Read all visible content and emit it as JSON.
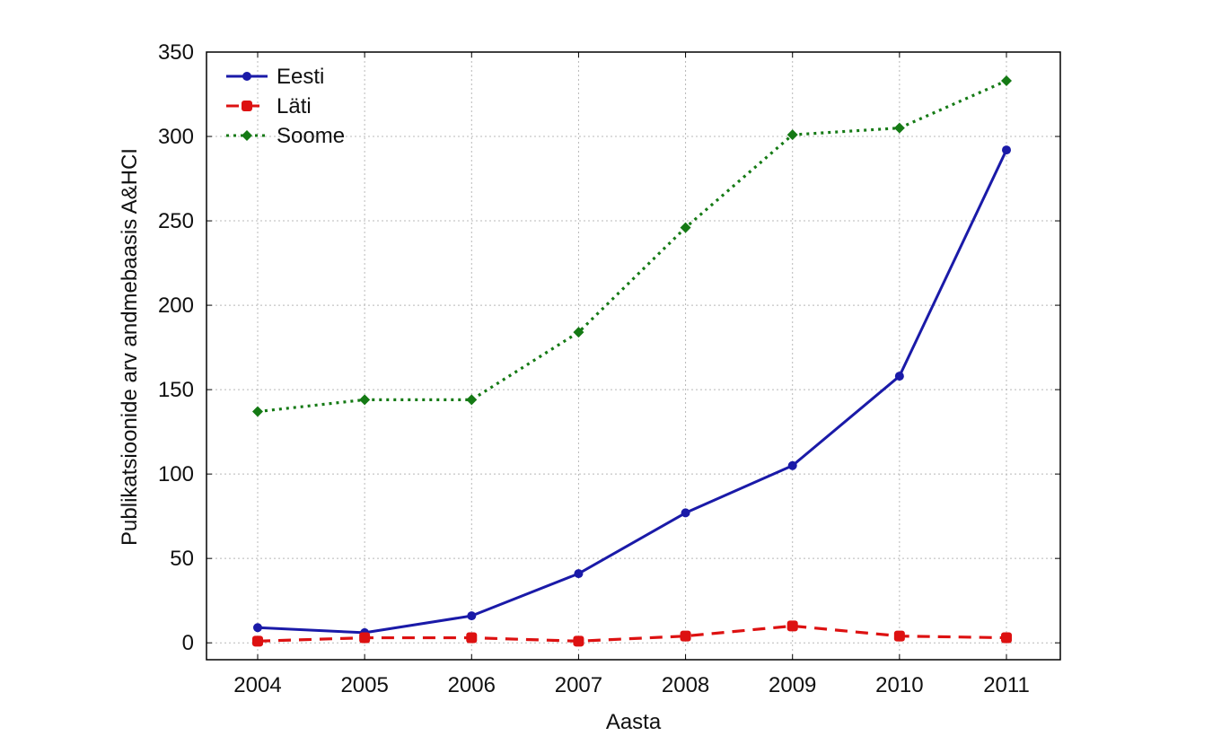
{
  "chart_data": {
    "type": "line",
    "title": "",
    "xlabel": "Aasta",
    "ylabel": "Publikatsioonide arv andmebaasis A&HCI",
    "categories": [
      "2004",
      "2005",
      "2006",
      "2007",
      "2008",
      "2009",
      "2010",
      "2011"
    ],
    "ylim": [
      -10,
      350
    ],
    "yticks": [
      0,
      50,
      100,
      150,
      200,
      250,
      300,
      350
    ],
    "grid": true,
    "legend_position": "top-left",
    "series": [
      {
        "name": "Eesti",
        "color": "#1a1aa8",
        "line_style": "solid",
        "marker": "circle",
        "values": [
          9,
          6,
          16,
          41,
          77,
          105,
          158,
          292
        ]
      },
      {
        "name": "Läti",
        "color": "#dd1111",
        "line_style": "dashed",
        "marker": "square",
        "values": [
          1,
          3,
          3,
          1,
          4,
          10,
          4,
          3
        ]
      },
      {
        "name": "Soome",
        "color": "#157a15",
        "line_style": "dotted",
        "marker": "diamond",
        "values": [
          137,
          144,
          144,
          184,
          246,
          301,
          305,
          333
        ]
      }
    ]
  }
}
